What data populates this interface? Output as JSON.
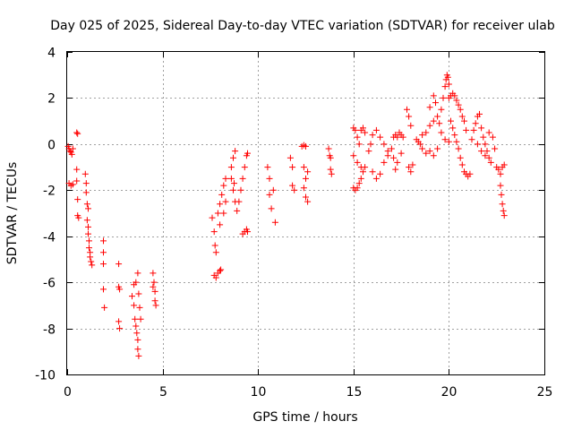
{
  "chart_data": {
    "type": "scatter",
    "title": "Day 025 of 2025, Sidereal Day-to-day VTEC variation (SDTVAR) for receiver ulab",
    "xlabel": "GPS time / hours",
    "ylabel": "SDTVAR / TECUs",
    "xlim": [
      0,
      25
    ],
    "ylim": [
      -10,
      4
    ],
    "xticks": [
      0,
      5,
      10,
      15,
      20,
      25
    ],
    "yticks": [
      -10,
      -8,
      -6,
      -4,
      -2,
      0,
      2,
      4
    ],
    "grid": true,
    "marker": "+",
    "color": "#ff0000",
    "series": [
      {
        "name": "SDTVAR",
        "points": [
          [
            0.05,
            -0.1
          ],
          [
            0.1,
            -0.2
          ],
          [
            0.15,
            -0.3
          ],
          [
            0.2,
            -0.35
          ],
          [
            0.25,
            -0.45
          ],
          [
            0.3,
            -0.2
          ],
          [
            0.1,
            -1.7
          ],
          [
            0.2,
            -1.8
          ],
          [
            0.3,
            -1.75
          ],
          [
            0.5,
            0.5
          ],
          [
            0.55,
            0.45
          ],
          [
            0.5,
            -1.1
          ],
          [
            0.5,
            -1.6
          ],
          [
            0.55,
            -2.4
          ],
          [
            0.55,
            -3.1
          ],
          [
            0.6,
            -3.2
          ],
          [
            0.95,
            -1.3
          ],
          [
            1.0,
            -1.7
          ],
          [
            1.0,
            -2.1
          ],
          [
            1.05,
            -2.6
          ],
          [
            1.1,
            -2.8
          ],
          [
            1.05,
            -3.3
          ],
          [
            1.1,
            -3.6
          ],
          [
            1.1,
            -3.9
          ],
          [
            1.15,
            -4.2
          ],
          [
            1.15,
            -4.5
          ],
          [
            1.2,
            -4.7
          ],
          [
            1.2,
            -4.9
          ],
          [
            1.25,
            -5.1
          ],
          [
            1.3,
            -5.25
          ],
          [
            1.9,
            -4.2
          ],
          [
            1.9,
            -4.7
          ],
          [
            1.9,
            -5.2
          ],
          [
            1.9,
            -6.3
          ],
          [
            1.95,
            -7.1
          ],
          [
            2.7,
            -5.2
          ],
          [
            2.7,
            -6.2
          ],
          [
            2.75,
            -6.3
          ],
          [
            2.7,
            -7.7
          ],
          [
            2.75,
            -8.0
          ],
          [
            3.4,
            -6.6
          ],
          [
            3.5,
            -6.1
          ],
          [
            3.5,
            -7.0
          ],
          [
            3.55,
            -7.6
          ],
          [
            3.6,
            -7.9
          ],
          [
            3.65,
            -8.2
          ],
          [
            3.7,
            -8.5
          ],
          [
            3.7,
            -8.9
          ],
          [
            3.75,
            -9.2
          ],
          [
            3.6,
            -6.0
          ],
          [
            3.7,
            -5.6
          ],
          [
            3.75,
            -6.5
          ],
          [
            3.8,
            -7.1
          ],
          [
            3.85,
            -7.6
          ],
          [
            4.5,
            -5.6
          ],
          [
            4.55,
            -6.0
          ],
          [
            4.6,
            -6.4
          ],
          [
            4.6,
            -6.8
          ],
          [
            4.65,
            -7.0
          ],
          [
            4.5,
            -6.2
          ],
          [
            7.6,
            -3.2
          ],
          [
            7.7,
            -3.8
          ],
          [
            7.75,
            -4.4
          ],
          [
            7.8,
            -4.7
          ],
          [
            7.7,
            -5.7
          ],
          [
            7.8,
            -5.8
          ],
          [
            7.9,
            -5.6
          ],
          [
            8.0,
            -5.5
          ],
          [
            8.05,
            -5.45
          ],
          [
            7.9,
            -3.0
          ],
          [
            8.0,
            -2.6
          ],
          [
            8.1,
            -2.2
          ],
          [
            8.2,
            -1.8
          ],
          [
            8.3,
            -1.5
          ],
          [
            8.0,
            -3.5
          ],
          [
            8.2,
            -3.0
          ],
          [
            8.3,
            -2.5
          ],
          [
            8.6,
            -1.0
          ],
          [
            8.7,
            -0.6
          ],
          [
            8.8,
            -0.3
          ],
          [
            8.6,
            -1.5
          ],
          [
            8.7,
            -2.0
          ],
          [
            8.8,
            -2.5
          ],
          [
            8.9,
            -2.9
          ],
          [
            8.75,
            -1.7
          ],
          [
            9.0,
            -2.5
          ],
          [
            9.1,
            -2.0
          ],
          [
            9.2,
            -1.5
          ],
          [
            9.3,
            -1.0
          ],
          [
            9.4,
            -0.5
          ],
          [
            9.45,
            -0.4
          ],
          [
            9.2,
            -3.9
          ],
          [
            9.3,
            -3.8
          ],
          [
            9.4,
            -3.7
          ],
          [
            9.45,
            -3.8
          ],
          [
            10.5,
            -1.0
          ],
          [
            10.6,
            -1.5
          ],
          [
            10.6,
            -2.2
          ],
          [
            10.7,
            -2.8
          ],
          [
            10.8,
            -2.0
          ],
          [
            10.9,
            -3.4
          ],
          [
            11.7,
            -0.6
          ],
          [
            11.8,
            -1.0
          ],
          [
            11.8,
            -1.8
          ],
          [
            11.9,
            -2.0
          ],
          [
            12.3,
            -0.1
          ],
          [
            12.4,
            -0.05
          ],
          [
            12.5,
            -0.1
          ],
          [
            12.4,
            -1.0
          ],
          [
            12.5,
            -1.5
          ],
          [
            12.4,
            -1.9
          ],
          [
            12.5,
            -2.3
          ],
          [
            12.6,
            -2.5
          ],
          [
            12.6,
            -1.2
          ],
          [
            13.7,
            -0.2
          ],
          [
            13.75,
            -0.5
          ],
          [
            13.8,
            -0.6
          ],
          [
            13.8,
            -1.1
          ],
          [
            13.85,
            -1.3
          ],
          [
            15.0,
            0.7
          ],
          [
            15.1,
            0.6
          ],
          [
            15.2,
            0.3
          ],
          [
            15.3,
            0.0
          ],
          [
            15.4,
            0.6
          ],
          [
            15.5,
            0.7
          ],
          [
            15.6,
            0.5
          ],
          [
            15.0,
            -1.9
          ],
          [
            15.1,
            -2.0
          ],
          [
            15.2,
            -1.9
          ],
          [
            15.3,
            -1.7
          ],
          [
            15.4,
            -1.5
          ],
          [
            15.5,
            -1.2
          ],
          [
            15.6,
            -1.0
          ],
          [
            15.0,
            -0.5
          ],
          [
            15.2,
            -0.8
          ],
          [
            15.4,
            -1.0
          ],
          [
            15.8,
            -0.3
          ],
          [
            15.9,
            0.0
          ],
          [
            16.0,
            0.4
          ],
          [
            16.2,
            0.6
          ],
          [
            16.4,
            0.3
          ],
          [
            16.6,
            0.0
          ],
          [
            16.8,
            -0.3
          ],
          [
            16.0,
            -1.2
          ],
          [
            16.2,
            -1.5
          ],
          [
            16.4,
            -1.3
          ],
          [
            16.6,
            -0.8
          ],
          [
            16.8,
            -0.5
          ],
          [
            17.0,
            -0.2
          ],
          [
            17.1,
            0.3
          ],
          [
            17.2,
            0.4
          ],
          [
            17.3,
            0.3
          ],
          [
            17.4,
            0.5
          ],
          [
            17.5,
            0.4
          ],
          [
            17.6,
            0.3
          ],
          [
            17.1,
            -0.6
          ],
          [
            17.3,
            -0.8
          ],
          [
            17.5,
            -0.4
          ],
          [
            17.2,
            -1.1
          ],
          [
            17.8,
            1.5
          ],
          [
            17.9,
            1.2
          ],
          [
            18.0,
            0.8
          ],
          [
            17.9,
            -1.0
          ],
          [
            18.0,
            -1.2
          ],
          [
            18.1,
            -0.9
          ],
          [
            18.3,
            0.2
          ],
          [
            18.4,
            0.1
          ],
          [
            18.5,
            0.0
          ],
          [
            18.6,
            -0.2
          ],
          [
            18.8,
            -0.4
          ],
          [
            19.0,
            -0.3
          ],
          [
            19.2,
            -0.5
          ],
          [
            19.4,
            -0.2
          ],
          [
            18.6,
            0.4
          ],
          [
            18.8,
            0.5
          ],
          [
            19.0,
            0.8
          ],
          [
            19.2,
            1.0
          ],
          [
            19.4,
            1.2
          ],
          [
            19.5,
            0.9
          ],
          [
            19.6,
            1.5
          ],
          [
            19.7,
            2.0
          ],
          [
            19.8,
            2.5
          ],
          [
            19.85,
            2.8
          ],
          [
            19.9,
            3.0
          ],
          [
            19.95,
            2.9
          ],
          [
            20.0,
            2.6
          ],
          [
            19.0,
            1.6
          ],
          [
            19.2,
            2.1
          ],
          [
            19.3,
            1.8
          ],
          [
            19.6,
            0.5
          ],
          [
            19.8,
            0.2
          ],
          [
            20.0,
            0.1
          ],
          [
            20.0,
            2.0
          ],
          [
            20.1,
            2.1
          ],
          [
            20.2,
            2.2
          ],
          [
            20.3,
            2.1
          ],
          [
            20.4,
            1.9
          ],
          [
            20.5,
            1.7
          ],
          [
            20.6,
            1.5
          ],
          [
            20.7,
            1.2
          ],
          [
            20.8,
            1.0
          ],
          [
            20.9,
            0.6
          ],
          [
            20.1,
            1.0
          ],
          [
            20.2,
            0.7
          ],
          [
            20.3,
            0.4
          ],
          [
            20.4,
            0.1
          ],
          [
            20.5,
            -0.2
          ],
          [
            20.6,
            -0.6
          ],
          [
            20.7,
            -0.9
          ],
          [
            20.8,
            -1.2
          ],
          [
            20.9,
            -1.3
          ],
          [
            21.0,
            -1.4
          ],
          [
            21.1,
            -1.3
          ],
          [
            21.2,
            0.2
          ],
          [
            21.3,
            0.6
          ],
          [
            21.4,
            0.9
          ],
          [
            21.5,
            1.2
          ],
          [
            21.6,
            1.3
          ],
          [
            21.7,
            0.7
          ],
          [
            21.8,
            0.3
          ],
          [
            21.9,
            0.0
          ],
          [
            22.0,
            -0.3
          ],
          [
            22.1,
            -0.6
          ],
          [
            22.2,
            -0.8
          ],
          [
            21.5,
            0.0
          ],
          [
            21.7,
            -0.3
          ],
          [
            21.9,
            -0.5
          ],
          [
            22.1,
            0.5
          ],
          [
            22.3,
            0.3
          ],
          [
            22.4,
            -0.2
          ],
          [
            22.5,
            -1.0
          ],
          [
            22.6,
            -1.1
          ],
          [
            22.7,
            -1.3
          ],
          [
            22.7,
            -1.8
          ],
          [
            22.75,
            -2.2
          ],
          [
            22.8,
            -2.6
          ],
          [
            22.85,
            -2.9
          ],
          [
            22.9,
            -3.1
          ],
          [
            22.8,
            -1.0
          ],
          [
            22.9,
            -0.9
          ]
        ]
      }
    ]
  }
}
